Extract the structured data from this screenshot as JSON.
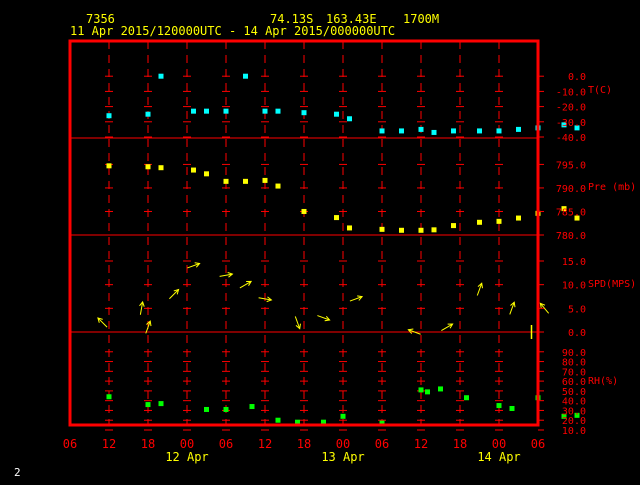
{
  "header": {
    "station_id": "7356",
    "latitude": "74.13S",
    "longitude": "163.43E",
    "elevation": "1700M",
    "date_range": "11 Apr 2015/120000UTC - 14 Apr 2015/000000UTC"
  },
  "footer": {
    "page_number": "2"
  },
  "colors": {
    "background": "#000000",
    "frame": "#ff0000",
    "axis_text": "#ff0000",
    "header_text": "#ffff00",
    "date_text": "#ffff00",
    "temperature": "#00ffff",
    "pressure": "#ffff00",
    "wind": "#ffff00",
    "humidity": "#00ff00",
    "footer_text": "#ffffff"
  },
  "chart_data": [
    {
      "type": "scatter",
      "panel": "temperature",
      "ylabel": "T(C)",
      "ylim": [
        -40,
        10
      ],
      "yticks": [
        "0.0",
        "-10.0",
        "-20.0",
        "-30.0",
        "-40.0"
      ],
      "x_hours": [
        0,
        6,
        8,
        13,
        15,
        18,
        21,
        24,
        26,
        30,
        35,
        37,
        42,
        45,
        48,
        50,
        53,
        57,
        60,
        63,
        66,
        70,
        72
      ],
      "values": [
        -26,
        -25,
        0,
        -23,
        -23,
        -23,
        0,
        -23,
        -23,
        -24,
        -25,
        -28,
        -36,
        -36,
        -35,
        -37,
        -36,
        -36,
        -36,
        -35,
        -34,
        -32,
        -34
      ]
    },
    {
      "type": "scatter",
      "panel": "pressure",
      "ylabel": "Pre (mb)",
      "ylim": [
        780,
        797
      ],
      "yticks": [
        "795.0",
        "790.0",
        "785.0",
        "780.0"
      ],
      "x_hours": [
        0,
        6,
        8,
        13,
        15,
        18,
        21,
        24,
        26,
        30,
        35,
        37,
        42,
        45,
        48,
        50,
        53,
        57,
        60,
        63,
        66,
        70,
        72
      ],
      "values": [
        794.7,
        794.5,
        794.3,
        793.8,
        793.0,
        791.4,
        791.4,
        791.6,
        790.4,
        785.0,
        783.7,
        781.5,
        781.2,
        781.0,
        781.0,
        781.1,
        782.0,
        782.7,
        782.9,
        783.6,
        784.6,
        785.6,
        783.6
      ]
    },
    {
      "type": "vector",
      "panel": "wind",
      "ylabel": "SPD(MPS)",
      "ylim": [
        0,
        15
      ],
      "yticks": [
        "15.0",
        "10.0",
        "5.0",
        "0.0"
      ],
      "x_hours": [
        -1,
        5,
        6,
        10,
        13,
        18,
        21,
        24,
        29,
        33,
        38,
        47,
        52,
        57,
        62,
        67
      ],
      "speed": [
        2,
        5,
        1,
        8,
        14,
        12,
        10,
        7,
        2,
        3,
        7,
        0,
        1,
        9,
        5,
        5
      ],
      "direction_deg": [
        315,
        10,
        20,
        45,
        70,
        80,
        60,
        100,
        160,
        110,
        70,
        290,
        60,
        20,
        20,
        320
      ],
      "calm_marker_hour": 65
    },
    {
      "type": "scatter",
      "panel": "humidity",
      "ylabel": "RH(%)",
      "ylim": [
        10,
        100
      ],
      "yticks": [
        "90.0",
        "80.0",
        "70.0",
        "60.0",
        "50.0",
        "40.0",
        "30.0",
        "20.0",
        "10.0"
      ],
      "x_hours": [
        0,
        6,
        8,
        15,
        18,
        22,
        26,
        29,
        33,
        36,
        42,
        48,
        49,
        51,
        55,
        60,
        62,
        66,
        70,
        72
      ],
      "values": [
        44,
        36,
        37,
        31,
        31,
        34,
        20,
        18,
        18,
        24,
        17,
        51,
        49,
        52,
        43,
        35,
        32,
        43,
        24,
        25
      ]
    }
  ],
  "x_axis": {
    "tick_labels": [
      "06",
      "12",
      "18",
      "00",
      "06",
      "12",
      "18",
      "00",
      "06",
      "12",
      "18",
      "00",
      "06"
    ],
    "start_hour": -6,
    "step_hours": 6,
    "date_labels": [
      {
        "label": "12 Apr",
        "hour": 12
      },
      {
        "label": "13 Apr",
        "hour": 36
      },
      {
        "label": "14 Apr",
        "hour": 60
      }
    ]
  }
}
